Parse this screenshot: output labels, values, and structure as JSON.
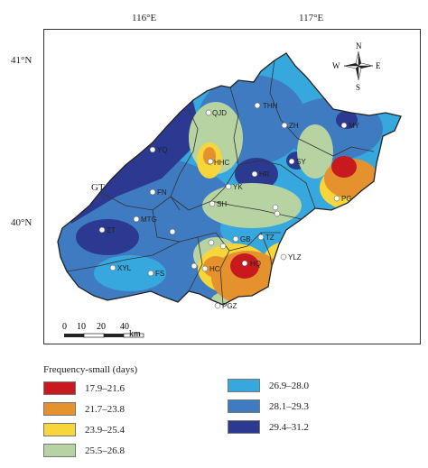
{
  "coordinates": {
    "lon_116": "116°E",
    "lon_117": "117°E",
    "lat_41": "41°N",
    "lat_40": "40°N"
  },
  "compass": {
    "n": "N",
    "s": "S",
    "e": "E",
    "w": "W"
  },
  "region_label": "GT",
  "scale_bar": {
    "ticks": [
      "0",
      "10",
      "20",
      "40"
    ],
    "unit": "km"
  },
  "stations": [
    {
      "id": "THH",
      "label": "THH"
    },
    {
      "id": "QJD",
      "label": "QJD"
    },
    {
      "id": "MY",
      "label": "MY"
    },
    {
      "id": "ZH",
      "label": "ZH"
    },
    {
      "id": "YQ",
      "label": "YQ"
    },
    {
      "id": "HHC",
      "label": "HHC"
    },
    {
      "id": "SY",
      "label": "SY"
    },
    {
      "id": "HR",
      "label": "HR"
    },
    {
      "id": "YK",
      "label": "YK"
    },
    {
      "id": "FN",
      "label": "FN"
    },
    {
      "id": "PG",
      "label": "PG"
    },
    {
      "id": "SH",
      "label": "SH"
    },
    {
      "id": "CP",
      "label": "CP"
    },
    {
      "id": "SY2",
      "label": "SY"
    },
    {
      "id": "MTG",
      "label": "MTG"
    },
    {
      "id": "ZT",
      "label": "ZT"
    },
    {
      "id": "BJ",
      "label": "BJ"
    },
    {
      "id": "FT",
      "label": "FT"
    },
    {
      "id": "GB",
      "label": "GB"
    },
    {
      "id": "TZ",
      "label": "TZ"
    },
    {
      "id": "XYL",
      "label": "XYL"
    },
    {
      "id": "FS",
      "label": "FS"
    },
    {
      "id": "DX",
      "label": "DX"
    },
    {
      "id": "HQ",
      "label": "HQ"
    },
    {
      "id": "YLZ",
      "label": "YLZ"
    },
    {
      "id": "ZK",
      "label": "ZK"
    },
    {
      "id": "DHC",
      "label": "HC"
    },
    {
      "id": "PGZ",
      "label": "PGZ"
    }
  ],
  "legend": {
    "title": "Frequency-small (days)",
    "items": [
      {
        "label": "17.9–21.6",
        "color": "#c8191e"
      },
      {
        "label": "21.7–23.8",
        "color": "#e5922e"
      },
      {
        "label": "23.9–25.4",
        "color": "#f6d63b"
      },
      {
        "label": "25.5–26.8",
        "color": "#b7d3a2"
      },
      {
        "label": "26.9–28.0",
        "color": "#36a8de"
      },
      {
        "label": "28.1–29.3",
        "color": "#3f7bc1"
      },
      {
        "label": "29.4–31.2",
        "color": "#2b3a90"
      }
    ]
  }
}
